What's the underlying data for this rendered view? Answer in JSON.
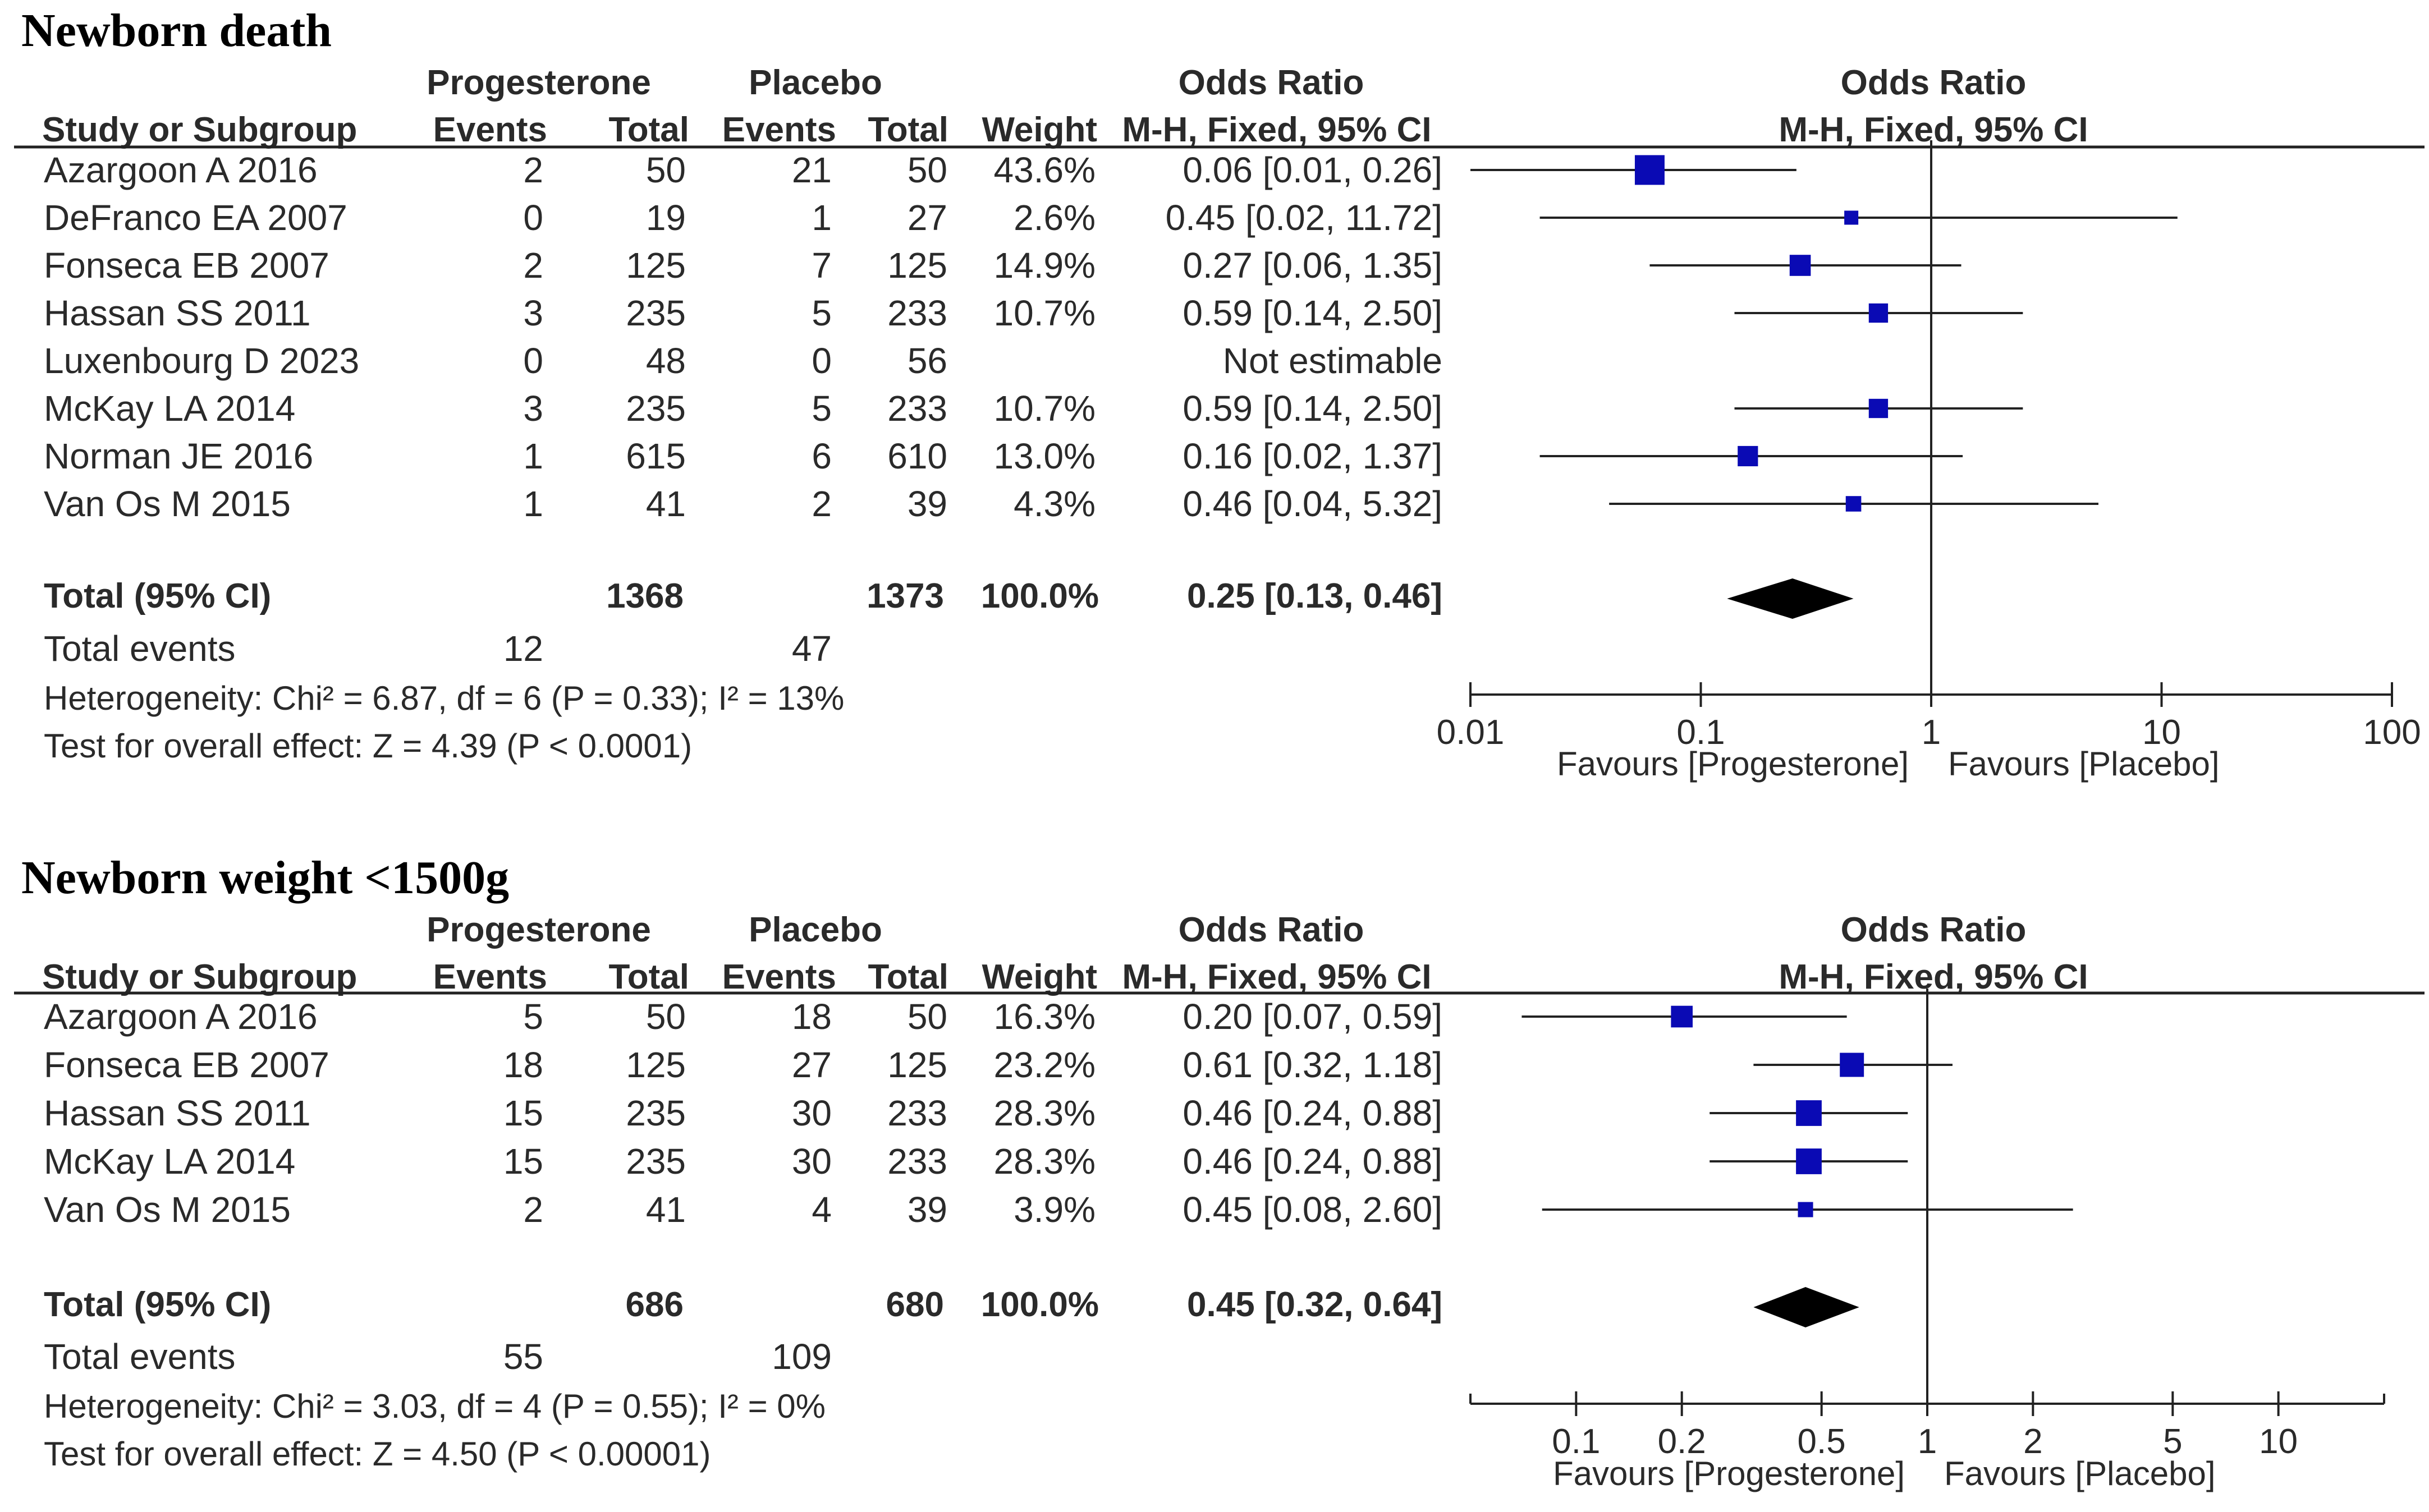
{
  "chart_data": [
    {
      "type": "forest",
      "title": "Newborn death",
      "group_headers": {
        "experimental": "Progesterone",
        "control": "Placebo",
        "or_col": "Odds Ratio",
        "or_plot": "Odds Ratio"
      },
      "column_headers": {
        "study": "Study or Subgroup",
        "exp_events": "Events",
        "exp_total": "Total",
        "ctl_events": "Events",
        "ctl_total": "Total",
        "weight": "Weight",
        "or_method": "M-H, Fixed, 95% CI",
        "plot_method": "M-H, Fixed, 95% CI"
      },
      "studies": [
        {
          "name": "Azargoon A 2016",
          "exp_events": "2",
          "exp_total": "50",
          "ctl_events": "21",
          "ctl_total": "50",
          "weight": "43.6%",
          "or_text": "0.06 [0.01, 0.26]",
          "or": 0.06,
          "lower": 0.01,
          "upper": 0.26,
          "w": 43.6
        },
        {
          "name": "DeFranco EA 2007",
          "exp_events": "0",
          "exp_total": "19",
          "ctl_events": "1",
          "ctl_total": "27",
          "weight": "2.6%",
          "or_text": "0.45 [0.02, 11.72]",
          "or": 0.45,
          "lower": 0.02,
          "upper": 11.72,
          "w": 2.6
        },
        {
          "name": "Fonseca EB 2007",
          "exp_events": "2",
          "exp_total": "125",
          "ctl_events": "7",
          "ctl_total": "125",
          "weight": "14.9%",
          "or_text": "0.27 [0.06, 1.35]",
          "or": 0.27,
          "lower": 0.06,
          "upper": 1.35,
          "w": 14.9
        },
        {
          "name": "Hassan SS 2011",
          "exp_events": "3",
          "exp_total": "235",
          "ctl_events": "5",
          "ctl_total": "233",
          "weight": "10.7%",
          "or_text": "0.59 [0.14, 2.50]",
          "or": 0.59,
          "lower": 0.14,
          "upper": 2.5,
          "w": 10.7
        },
        {
          "name": "Luxenbourg D 2023",
          "exp_events": "0",
          "exp_total": "48",
          "ctl_events": "0",
          "ctl_total": "56",
          "weight": "",
          "or_text": "Not estimable",
          "or": null,
          "lower": null,
          "upper": null,
          "w": 0
        },
        {
          "name": "McKay LA 2014",
          "exp_events": "3",
          "exp_total": "235",
          "ctl_events": "5",
          "ctl_total": "233",
          "weight": "10.7%",
          "or_text": "0.59 [0.14, 2.50]",
          "or": 0.59,
          "lower": 0.14,
          "upper": 2.5,
          "w": 10.7
        },
        {
          "name": "Norman JE 2016",
          "exp_events": "1",
          "exp_total": "615",
          "ctl_events": "6",
          "ctl_total": "610",
          "weight": "13.0%",
          "or_text": "0.16 [0.02, 1.37]",
          "or": 0.16,
          "lower": 0.02,
          "upper": 1.37,
          "w": 13.0
        },
        {
          "name": "Van Os M 2015",
          "exp_events": "1",
          "exp_total": "41",
          "ctl_events": "2",
          "ctl_total": "39",
          "weight": "4.3%",
          "or_text": "0.46 [0.04, 5.32]",
          "or": 0.46,
          "lower": 0.04,
          "upper": 5.32,
          "w": 4.3
        }
      ],
      "total": {
        "label": "Total (95% CI)",
        "exp_total": "1368",
        "ctl_total": "1373",
        "weight": "100.0%",
        "or_text": "0.25 [0.13, 0.46]",
        "or": 0.25,
        "lower": 0.13,
        "upper": 0.46
      },
      "total_events": {
        "label": "Total events",
        "exp": "12",
        "ctl": "47"
      },
      "heterogeneity": "Heterogeneity: Chi² = 6.87, df = 6 (P = 0.33); I² = 13%",
      "overall_effect": "Test for overall effect: Z = 4.39 (P < 0.0001)",
      "axis": {
        "scale": "log",
        "min": 0.01,
        "max": 100,
        "ticks": [
          0.01,
          0.1,
          1,
          10,
          100
        ],
        "tick_labels": [
          "0.01",
          "0.1",
          "1",
          "10",
          "100"
        ]
      },
      "favours": {
        "left": "Favours [Progesterone]",
        "right": "Favours [Placebo]"
      },
      "marker_color": "#0a0ab4"
    },
    {
      "type": "forest",
      "title": "Newborn weight <1500g",
      "group_headers": {
        "experimental": "Progesterone",
        "control": "Placebo",
        "or_col": "Odds Ratio",
        "or_plot": "Odds Ratio"
      },
      "column_headers": {
        "study": "Study or Subgroup",
        "exp_events": "Events",
        "exp_total": "Total",
        "ctl_events": "Events",
        "ctl_total": "Total",
        "weight": "Weight",
        "or_method": "M-H, Fixed, 95% CI",
        "plot_method": "M-H, Fixed, 95% CI"
      },
      "studies": [
        {
          "name": "Azargoon A 2016",
          "exp_events": "5",
          "exp_total": "50",
          "ctl_events": "18",
          "ctl_total": "50",
          "weight": "16.3%",
          "or_text": "0.20 [0.07, 0.59]",
          "or": 0.2,
          "lower": 0.07,
          "upper": 0.59,
          "w": 16.3
        },
        {
          "name": "Fonseca EB 2007",
          "exp_events": "18",
          "exp_total": "125",
          "ctl_events": "27",
          "ctl_total": "125",
          "weight": "23.2%",
          "or_text": "0.61 [0.32, 1.18]",
          "or": 0.61,
          "lower": 0.32,
          "upper": 1.18,
          "w": 23.2
        },
        {
          "name": "Hassan SS 2011",
          "exp_events": "15",
          "exp_total": "235",
          "ctl_events": "30",
          "ctl_total": "233",
          "weight": "28.3%",
          "or_text": "0.46 [0.24, 0.88]",
          "or": 0.46,
          "lower": 0.24,
          "upper": 0.88,
          "w": 28.3
        },
        {
          "name": "McKay LA 2014",
          "exp_events": "15",
          "exp_total": "235",
          "ctl_events": "30",
          "ctl_total": "233",
          "weight": "28.3%",
          "or_text": "0.46 [0.24, 0.88]",
          "or": 0.46,
          "lower": 0.24,
          "upper": 0.88,
          "w": 28.3
        },
        {
          "name": "Van Os M 2015",
          "exp_events": "2",
          "exp_total": "41",
          "ctl_events": "4",
          "ctl_total": "39",
          "weight": "3.9%",
          "or_text": "0.45 [0.08, 2.60]",
          "or": 0.45,
          "lower": 0.08,
          "upper": 2.6,
          "w": 3.9
        }
      ],
      "total": {
        "label": "Total (95% CI)",
        "exp_total": "686",
        "ctl_total": "680",
        "weight": "100.0%",
        "or_text": "0.45 [0.32, 0.64]",
        "or": 0.45,
        "lower": 0.32,
        "upper": 0.64
      },
      "total_events": {
        "label": "Total events",
        "exp": "55",
        "ctl": "109"
      },
      "heterogeneity": "Heterogeneity: Chi² = 3.03, df = 4 (P = 0.55); I² = 0%",
      "overall_effect": "Test for overall effect: Z = 4.50 (P < 0.00001)",
      "axis": {
        "scale": "log",
        "min": 0.05,
        "max": 20,
        "ticks": [
          0.1,
          0.2,
          0.5,
          1,
          2,
          5,
          10
        ],
        "tick_labels": [
          "0.1",
          "0.2",
          "0.5",
          "1",
          "2",
          "5",
          "10"
        ]
      },
      "favours": {
        "left": "Favours [Progesterone]",
        "right": "Favours [Placebo]"
      },
      "marker_color": "#0a0ab4"
    }
  ]
}
